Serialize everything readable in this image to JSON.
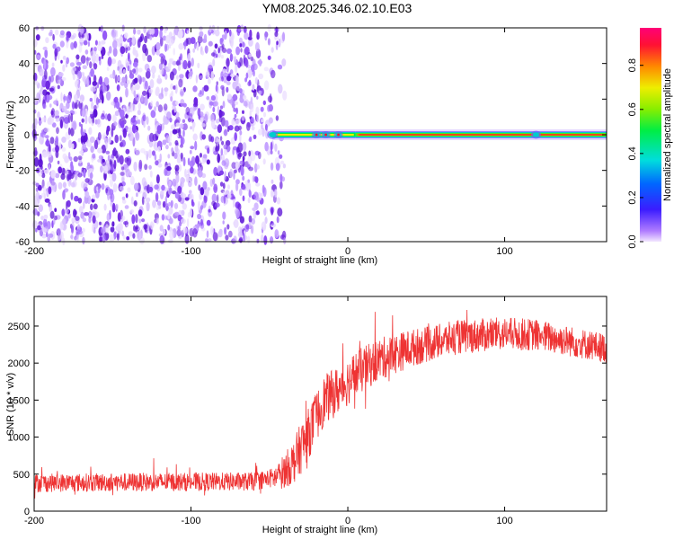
{
  "title": "YM08.2025.346.02.10.E03",
  "chart_data": [
    {
      "type": "heatmap",
      "xlabel": "Height of straight line (km)",
      "ylabel": "Frequency (Hz)",
      "xlim": [
        -200,
        165
      ],
      "ylim": [
        -60,
        60
      ],
      "xticks": [
        -200,
        -100,
        0,
        100
      ],
      "yticks": [
        -60,
        -40,
        -20,
        0,
        20,
        40,
        60
      ],
      "noise_region_x": [
        -200,
        -40
      ],
      "signal": {
        "frequency_hz": 0,
        "band_segments": [
          {
            "x_start": -48,
            "x_end": 5,
            "peak_amplitude": 0.85
          },
          {
            "x_start": 5,
            "x_end": 165,
            "peak_amplitude": 1.0
          }
        ]
      },
      "colorbar": {
        "label": "Normalized spectral amplitude",
        "range": [
          0,
          0.97
        ],
        "ticks": [
          "0.0",
          "0.2",
          "0.4",
          "0.6",
          "0.8"
        ]
      }
    },
    {
      "type": "line",
      "xlabel": "Height of straight line (km)",
      "ylabel": "SNR (10 * v/v)",
      "xlim": [
        -200,
        165
      ],
      "ylim": [
        0,
        2900
      ],
      "xticks": [
        -200,
        -100,
        0,
        100
      ],
      "yticks": [
        0,
        500,
        1000,
        1500,
        2000,
        2500
      ],
      "series": [
        {
          "name": "SNR",
          "color": "#ee3333",
          "trend": {
            "x": [
              -200,
              -150,
              -100,
              -60,
              -45,
              -35,
              -25,
              -15,
              -5,
              5,
              20,
              40,
              70,
              100,
              120,
              140,
              165
            ],
            "y": [
              380,
              390,
              395,
              400,
              460,
              650,
              1050,
              1500,
              1650,
              1850,
              2050,
              2200,
              2350,
              2400,
              2380,
              2300,
              2200
            ]
          },
          "noise_amplitude": {
            "x": [
              -200,
              -50,
              -30,
              0,
              50,
              165
            ],
            "y": [
              250,
              250,
              700,
              650,
              480,
              400
            ]
          }
        }
      ]
    }
  ]
}
